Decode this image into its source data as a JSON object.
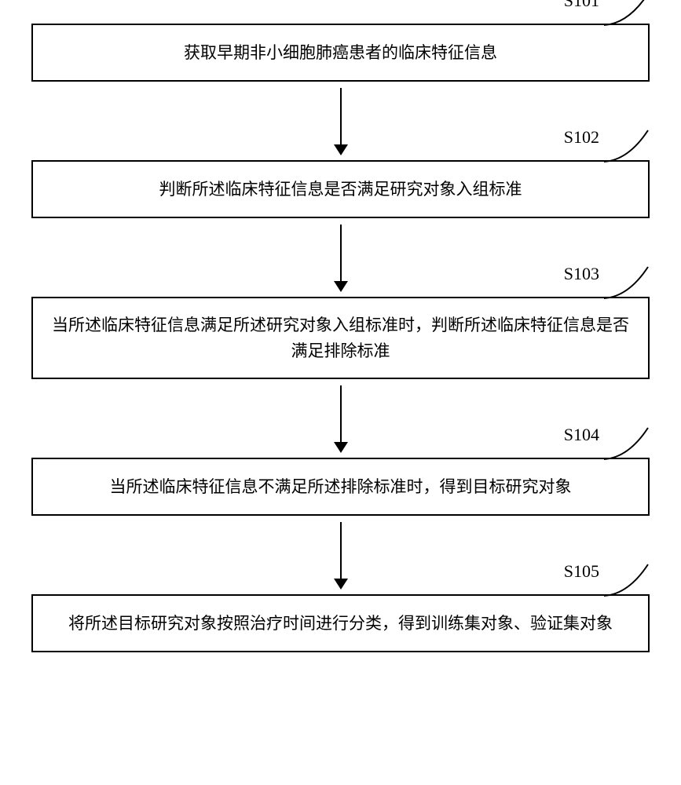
{
  "diagram": {
    "type": "flowchart",
    "direction": "vertical",
    "background_color": "#ffffff",
    "stroke_color": "#000000",
    "stroke_width": 2,
    "box_font_size": 21,
    "label_font_size": 22,
    "arrow_length": 86,
    "arrow_head_size": 14,
    "callout_curve_w": 60,
    "callout_curve_h": 44,
    "steps": [
      {
        "id": "S101",
        "text": "获取早期非小细胞肺癌患者的临床特征信息"
      },
      {
        "id": "S102",
        "text": "判断所述临床特征信息是否满足研究对象入组标准"
      },
      {
        "id": "S103",
        "text": "当所述临床特征信息满足所述研究对象入组标准时，判断所述临床特征信息是否满足排除标准"
      },
      {
        "id": "S104",
        "text": "当所述临床特征信息不满足所述排除标准时，得到目标研究对象"
      },
      {
        "id": "S105",
        "text": "将所述目标研究对象按照治疗时间进行分类，得到训练集对象、验证集对象"
      }
    ]
  }
}
